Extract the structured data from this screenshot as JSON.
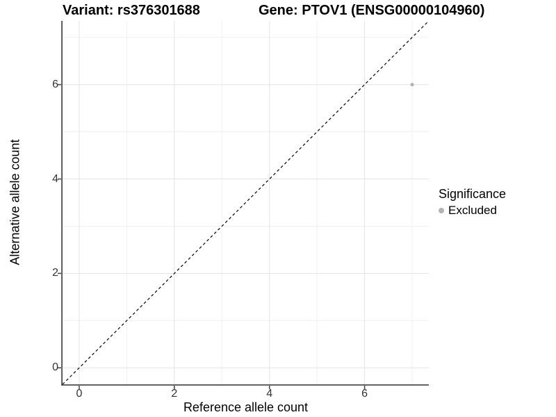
{
  "page": {
    "background": "#ffffff"
  },
  "header": {
    "title_left": "Variant: rs376301688",
    "title_right": "Gene: PTOV1 (ENSG00000104960)"
  },
  "legend": {
    "title": "Significance",
    "items": [
      {
        "label": "Excluded",
        "color": "#b3b3b3"
      }
    ]
  },
  "colors": {
    "grid_major": "#e3e3e3",
    "grid_minor": "#f0f0f0",
    "axis": "#4d4d4d",
    "tick_label": "#333333",
    "ref_line": "#000000",
    "background": "#ffffff"
  },
  "chart_data": {
    "type": "scatter",
    "title_left": "Variant: rs376301688",
    "title_right": "Gene: PTOV1 (ENSG00000104960)",
    "xlabel": "Reference allele count",
    "ylabel": "Alternative allele count",
    "xlim": [
      -0.35,
      7.35
    ],
    "ylim": [
      -0.35,
      7.35
    ],
    "x_major_ticks": [
      0,
      2,
      4,
      6
    ],
    "y_major_ticks": [
      0,
      2,
      4,
      6
    ],
    "x_minor_ticks": [
      1,
      3,
      5,
      7
    ],
    "y_minor_ticks": [
      1,
      3,
      5,
      7
    ],
    "grid": true,
    "legend_title": "Significance",
    "legend_position": "right",
    "reference_line": {
      "type": "identity y=x",
      "style": "dashed",
      "color": "#000000"
    },
    "series": [
      {
        "name": "Excluded",
        "color": "#b3b3b3",
        "points": [
          {
            "x": 7,
            "y": 6
          }
        ]
      }
    ]
  }
}
